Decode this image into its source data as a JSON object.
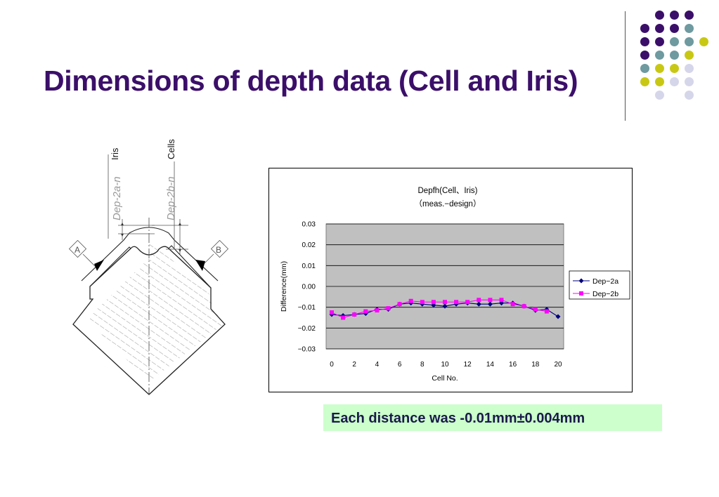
{
  "slide": {
    "title": "Dimensions of depth data (Cell and Iris)",
    "note": "Each distance was -0.01mm±0.004mm"
  },
  "drawing": {
    "iris_label": "Iris",
    "cells_label": "Cells",
    "dim_a_label": "Dep-2a-n",
    "dim_b_label": "Dep-2b-n",
    "datum_a": "A",
    "datum_b": "B"
  },
  "colors": {
    "title": "#3b0f69",
    "dot_purple": "#3b0f69",
    "dot_teal": "#6e9aa0",
    "dot_yellow": "#c8c814",
    "dot_lavender": "#d6d6ea",
    "note_bg": "#ccffcc",
    "plot_bg": "#c0c0c0",
    "series_a": "#000080",
    "series_b": "#ff00ff"
  },
  "chart_data": {
    "type": "line",
    "title": "Depfh(Cell、Iris)",
    "subtitle": "（meas.−design）",
    "xlabel": "Cell No.",
    "ylabel": "Difference(mm)",
    "xlim": [
      0,
      20
    ],
    "ylim": [
      -0.03,
      0.03
    ],
    "xticks": [
      "0",
      "2",
      "4",
      "6",
      "8",
      "10",
      "12",
      "14",
      "16",
      "18",
      "20"
    ],
    "yticks": [
      "0.03",
      "0.02",
      "0.01",
      "0.00",
      "−0.01",
      "−0.02",
      "−0.03"
    ],
    "grid": true,
    "legend_position": "right",
    "series": [
      {
        "name": "Dep−2a",
        "marker": "diamond",
        "x": [
          0,
          1,
          2,
          3,
          4,
          5,
          6,
          7,
          8,
          9,
          10,
          11,
          12,
          13,
          14,
          15,
          16,
          17,
          18,
          19,
          20
        ],
        "values": [
          -0.0135,
          -0.014,
          -0.0135,
          -0.013,
          -0.011,
          -0.011,
          -0.0085,
          -0.008,
          -0.0085,
          -0.009,
          -0.0095,
          -0.0085,
          -0.008,
          -0.0085,
          -0.0085,
          -0.008,
          -0.008,
          -0.0095,
          -0.0115,
          -0.011,
          -0.0145
        ]
      },
      {
        "name": "Dep−2b",
        "marker": "square",
        "x": [
          0,
          1,
          2,
          3,
          4,
          5,
          6,
          7,
          8,
          9,
          10,
          11,
          12,
          13,
          14,
          15,
          16,
          17,
          18,
          19
        ],
        "values": [
          -0.0125,
          -0.015,
          -0.0135,
          -0.012,
          -0.0115,
          -0.0105,
          -0.0085,
          -0.007,
          -0.0075,
          -0.0075,
          -0.0075,
          -0.0075,
          -0.0075,
          -0.0065,
          -0.0065,
          -0.0065,
          -0.0085,
          -0.0095,
          -0.011,
          -0.012
        ]
      }
    ]
  }
}
